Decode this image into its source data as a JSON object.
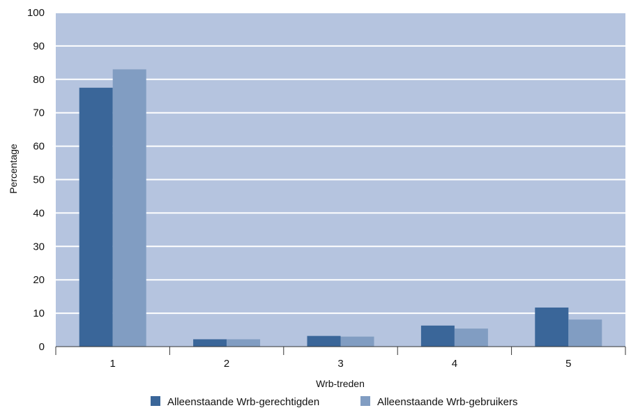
{
  "chart_data": {
    "type": "bar",
    "categories": [
      "1",
      "2",
      "3",
      "4",
      "5"
    ],
    "series": [
      {
        "name": "Alleenstaande Wrb-gerechtigden",
        "color": "#3a6699",
        "values": [
          77.5,
          2.2,
          3.2,
          6.3,
          11.7
        ]
      },
      {
        "name": "Alleenstaande Wrb-gebruikers",
        "color": "#819dc2",
        "values": [
          83,
          2.2,
          3.0,
          5.4,
          8.1
        ]
      }
    ],
    "xlabel": "Wrb-treden",
    "ylabel": "Percentage",
    "ylim": [
      0,
      100
    ],
    "yticks": [
      0,
      10,
      20,
      30,
      40,
      50,
      60,
      70,
      80,
      90,
      100
    ],
    "grid": true,
    "legend_position": "bottom-center",
    "plot_background": "#b5c4df",
    "gridline_color": "#ffffff"
  }
}
